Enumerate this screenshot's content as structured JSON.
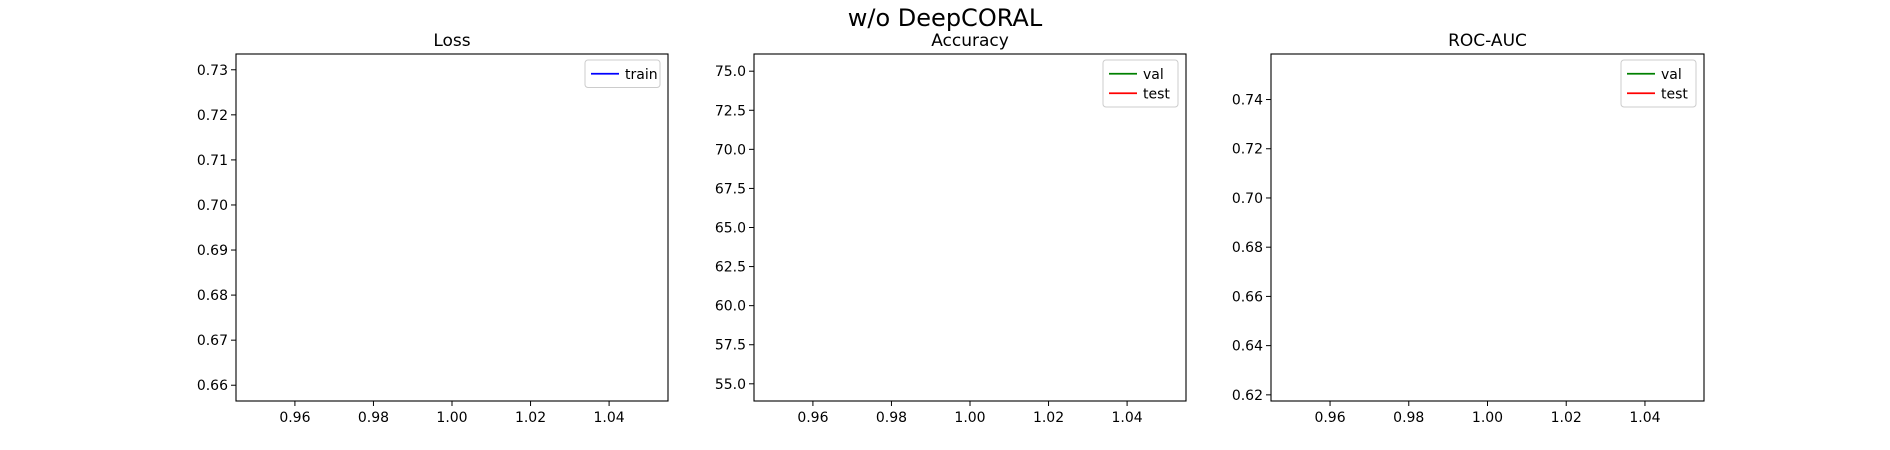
{
  "figure": {
    "suptitle": "w/o DeepCORAL"
  },
  "chart_data": [
    {
      "type": "line",
      "title": "Loss",
      "xlabel": "",
      "ylabel": "",
      "xlim": [
        0.945,
        1.055
      ],
      "ylim": [
        0.6565,
        0.7335
      ],
      "xticks": [
        0.96,
        0.98,
        1.0,
        1.02,
        1.04
      ],
      "xtick_labels": [
        "0.96",
        "0.98",
        "1.00",
        "1.02",
        "1.04"
      ],
      "yticks": [
        0.66,
        0.67,
        0.68,
        0.69,
        0.7,
        0.71,
        0.72,
        0.73
      ],
      "ytick_labels": [
        "0.66",
        "0.67",
        "0.68",
        "0.69",
        "0.70",
        "0.71",
        "0.72",
        "0.73"
      ],
      "grid": false,
      "legend_position": "top-right",
      "series": [
        {
          "name": "train",
          "color": "#0000ff",
          "x": [],
          "values": []
        }
      ]
    },
    {
      "type": "line",
      "title": "Accuracy",
      "xlabel": "",
      "ylabel": "",
      "xlim": [
        0.945,
        1.055
      ],
      "ylim": [
        53.9,
        76.1
      ],
      "xticks": [
        0.96,
        0.98,
        1.0,
        1.02,
        1.04
      ],
      "xtick_labels": [
        "0.96",
        "0.98",
        "1.00",
        "1.02",
        "1.04"
      ],
      "yticks": [
        55.0,
        57.5,
        60.0,
        62.5,
        65.0,
        67.5,
        70.0,
        72.5,
        75.0
      ],
      "ytick_labels": [
        "55.0",
        "57.5",
        "60.0",
        "62.5",
        "65.0",
        "67.5",
        "70.0",
        "72.5",
        "75.0"
      ],
      "grid": false,
      "legend_position": "top-right",
      "series": [
        {
          "name": "val",
          "color": "#008000",
          "x": [],
          "values": []
        },
        {
          "name": "test",
          "color": "#ff0000",
          "x": [],
          "values": []
        }
      ]
    },
    {
      "type": "line",
      "title": "ROC-AUC",
      "xlabel": "",
      "ylabel": "",
      "xlim": [
        0.945,
        1.055
      ],
      "ylim": [
        0.6175,
        0.7585
      ],
      "xticks": [
        0.96,
        0.98,
        1.0,
        1.02,
        1.04
      ],
      "xtick_labels": [
        "0.96",
        "0.98",
        "1.00",
        "1.02",
        "1.04"
      ],
      "yticks": [
        0.62,
        0.64,
        0.66,
        0.68,
        0.7,
        0.72,
        0.74
      ],
      "ytick_labels": [
        "0.62",
        "0.64",
        "0.66",
        "0.68",
        "0.70",
        "0.72",
        "0.74"
      ],
      "grid": false,
      "legend_position": "top-right",
      "series": [
        {
          "name": "val",
          "color": "#008000",
          "x": [],
          "values": []
        },
        {
          "name": "test",
          "color": "#ff0000",
          "x": [],
          "values": []
        }
      ]
    }
  ]
}
